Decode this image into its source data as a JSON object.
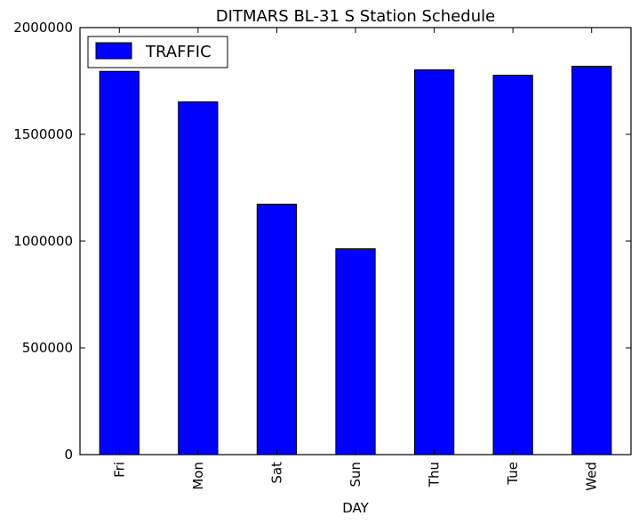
{
  "chart_data": {
    "type": "bar",
    "title": "DITMARS BL-31 S Station Schedule",
    "xlabel": "DAY",
    "ylabel": "",
    "categories": [
      "Fri",
      "Mon",
      "Sat",
      "Sun",
      "Thu",
      "Tue",
      "Wed"
    ],
    "series": [
      {
        "name": "TRAFFIC",
        "color": "#0000ff",
        "values": [
          1795000,
          1652000,
          1173000,
          964000,
          1802000,
          1777000,
          1819000
        ]
      }
    ],
    "ylim": [
      0,
      2000000
    ],
    "yticks": [
      "0",
      "500000",
      "1000000",
      "1500000",
      "2000000"
    ],
    "grid": false,
    "legend": "top-left"
  }
}
